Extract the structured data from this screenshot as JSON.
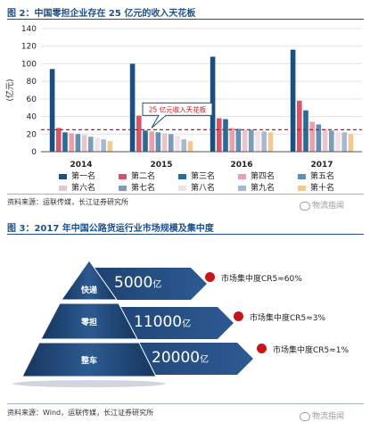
{
  "figure2": {
    "title": "图 2：中国零担企业存在 25 亿元的收入天花板",
    "source": "资料来源：运联传媒，长江证券研究所"
  },
  "figure3": {
    "title": "图 3：2017 年中国公路货运行业市场规模及集中度",
    "source": "资料来源：Wind，运联传媒，长江证券研究所"
  },
  "watermark": "物流指闻",
  "chart_data": [
    {
      "type": "bar",
      "title": "",
      "ylabel": "(亿元)",
      "xlabel": "",
      "ylim": [
        0,
        140
      ],
      "yticks": [
        0,
        20,
        40,
        60,
        80,
        100,
        120,
        140
      ],
      "categories": [
        "2014",
        "2015",
        "2016",
        "2017"
      ],
      "series": [
        {
          "name": "第一名",
          "color": "#1d4e7e",
          "values": [
            94,
            100,
            108,
            116
          ]
        },
        {
          "name": "第二名",
          "color": "#d9536b",
          "values": [
            27,
            41,
            38,
            58
          ]
        },
        {
          "name": "第三名",
          "color": "#2a6b96",
          "values": [
            22,
            24,
            37,
            47
          ]
        },
        {
          "name": "第四名",
          "color": "#e9a0ad",
          "values": [
            21,
            23,
            27,
            34
          ]
        },
        {
          "name": "第五名",
          "color": "#5f8fb5",
          "values": [
            20,
            22,
            26,
            31
          ]
        },
        {
          "name": "第六名",
          "color": "#e3c8cf",
          "values": [
            19,
            21,
            25,
            26
          ]
        },
        {
          "name": "第七名",
          "color": "#7c9cbd",
          "values": [
            17,
            20,
            25,
            24
          ]
        },
        {
          "name": "第八名",
          "color": "#f1e2e6",
          "values": [
            16,
            18,
            24,
            23
          ]
        },
        {
          "name": "第九名",
          "color": "#a7b9cc",
          "values": [
            14,
            14,
            23,
            22
          ]
        },
        {
          "name": "第十名",
          "color": "#f5c98b",
          "values": [
            12,
            12,
            22,
            20
          ]
        }
      ],
      "reference_line": {
        "value": 25,
        "label": "25 亿元收入天花板",
        "color": "#c4161c"
      },
      "legend_position": "bottom"
    },
    {
      "type": "pyramid",
      "levels": [
        {
          "name": "快递",
          "value": "5000",
          "unit": "亿",
          "concentration": "市场集中度CR5≈60%"
        },
        {
          "name": "零担",
          "value": "11000",
          "unit": "亿",
          "concentration": "市场集中度CR5≈3%"
        },
        {
          "name": "整车",
          "value": "20000",
          "unit": "亿",
          "concentration": "市场集中度CR5≈1%"
        }
      ]
    }
  ]
}
